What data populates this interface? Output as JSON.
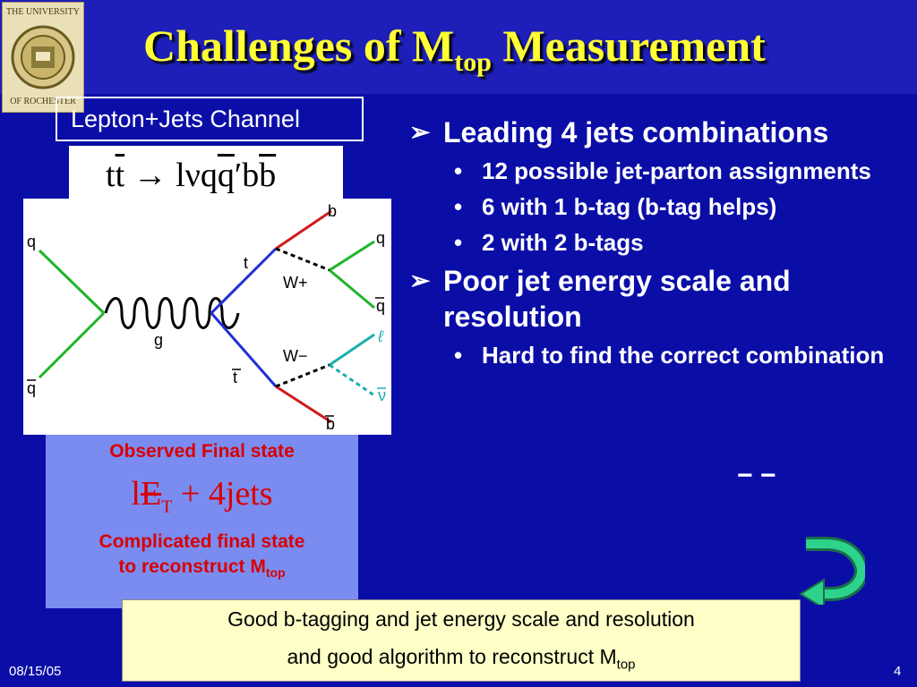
{
  "title": {
    "main": "Challenges of M",
    "sub": "top",
    "rest": " Measurement"
  },
  "logo": {
    "top_text": "THE UNIVERSITY",
    "bottom_text": "OF ROCHESTER"
  },
  "channel": {
    "label": "Lepton+Jets Channel"
  },
  "equation": {
    "tt": "tt",
    "arrow": " → ",
    "lvqq": "lνq",
    "qbar": "q",
    "prime": "′",
    "b1": "b",
    "b2": "b"
  },
  "diagram": {
    "labels": {
      "q_in": "q",
      "qbar_in": "q",
      "g": "g",
      "t": "t",
      "tbar": "t",
      "Wplus": "W+",
      "Wminus": "W−",
      "b": "b",
      "q_out": "q",
      "qbar_out": "q",
      "lepton": "ℓ",
      "nu": "ν",
      "bbar": "b"
    }
  },
  "observed": {
    "heading": "Observed Final state",
    "eq_l": "l",
    "eq_E": "E",
    "eq_T": "T",
    "eq_rest": " + 4jets"
  },
  "complicated": {
    "line1": "Complicated final state",
    "line2": "to reconstruct M",
    "sub": "top"
  },
  "bullets": {
    "b1": "Leading 4 jets combinations",
    "b1_sub": [
      "12 possible jet-parton assignments",
      "6 with 1 b-tag (b-tag helps)",
      "2 with 2 b-tags"
    ],
    "b2": "Poor jet energy scale and resolution",
    "b2_sub": [
      "Hard to find the correct combination"
    ],
    "arrow_glyph": "➢",
    "dot_glyph": "•"
  },
  "dashes": "− −",
  "summary": {
    "line1": "Good b-tagging and jet energy scale and resolution",
    "line2": "and good algorithm to reconstruct M",
    "sub": "top"
  },
  "footer": {
    "date": "08/15/05",
    "page": "4"
  },
  "colors": {
    "background": "#0b0ea6",
    "title": "#ffff33",
    "red_text": "#d90000",
    "summary_bg": "#ffffc8",
    "uturn": "#2dd38a"
  }
}
